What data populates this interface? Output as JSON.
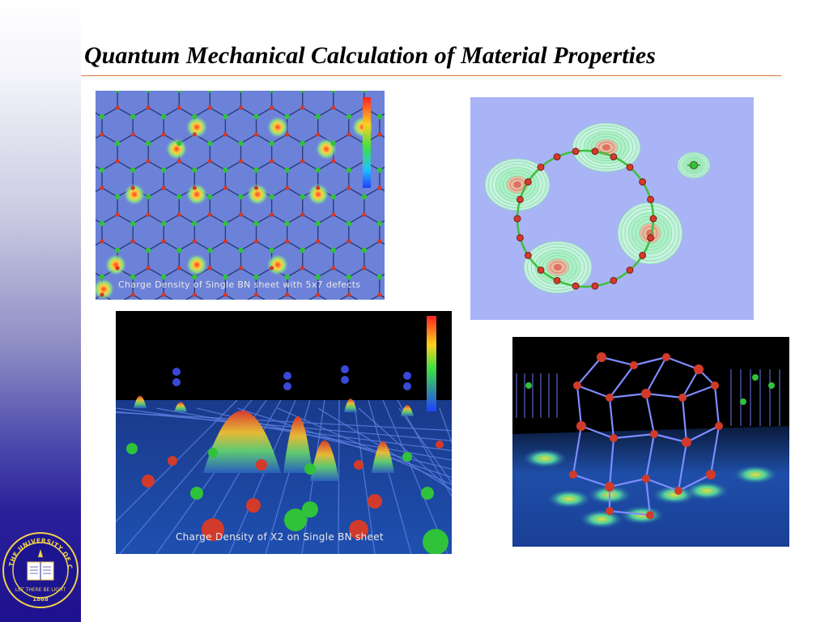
{
  "slide": {
    "title": "Quantum Mechanical Calculation of Material Properties"
  },
  "images": {
    "graphene_defects": {
      "caption": "Charge Density of Single BN sheet with 5x7 defects"
    },
    "ring_contour": {
      "caption": ""
    },
    "bn_sheet_3d": {
      "caption": "Charge Density of X2 on Single BN sheet"
    },
    "cage_structure": {
      "caption": ""
    }
  },
  "seal": {
    "text": "THE UNIVERSITY OF CALIFORNIA",
    "motto": "LET THERE BE LIGHT",
    "year": "1868"
  },
  "colors": {
    "title_rule": "#d8773a",
    "sidebar_top": "#ffffff",
    "sidebar_bottom": "#1e118f",
    "atom_red": "#d23a2a",
    "atom_green": "#2fc23a"
  }
}
